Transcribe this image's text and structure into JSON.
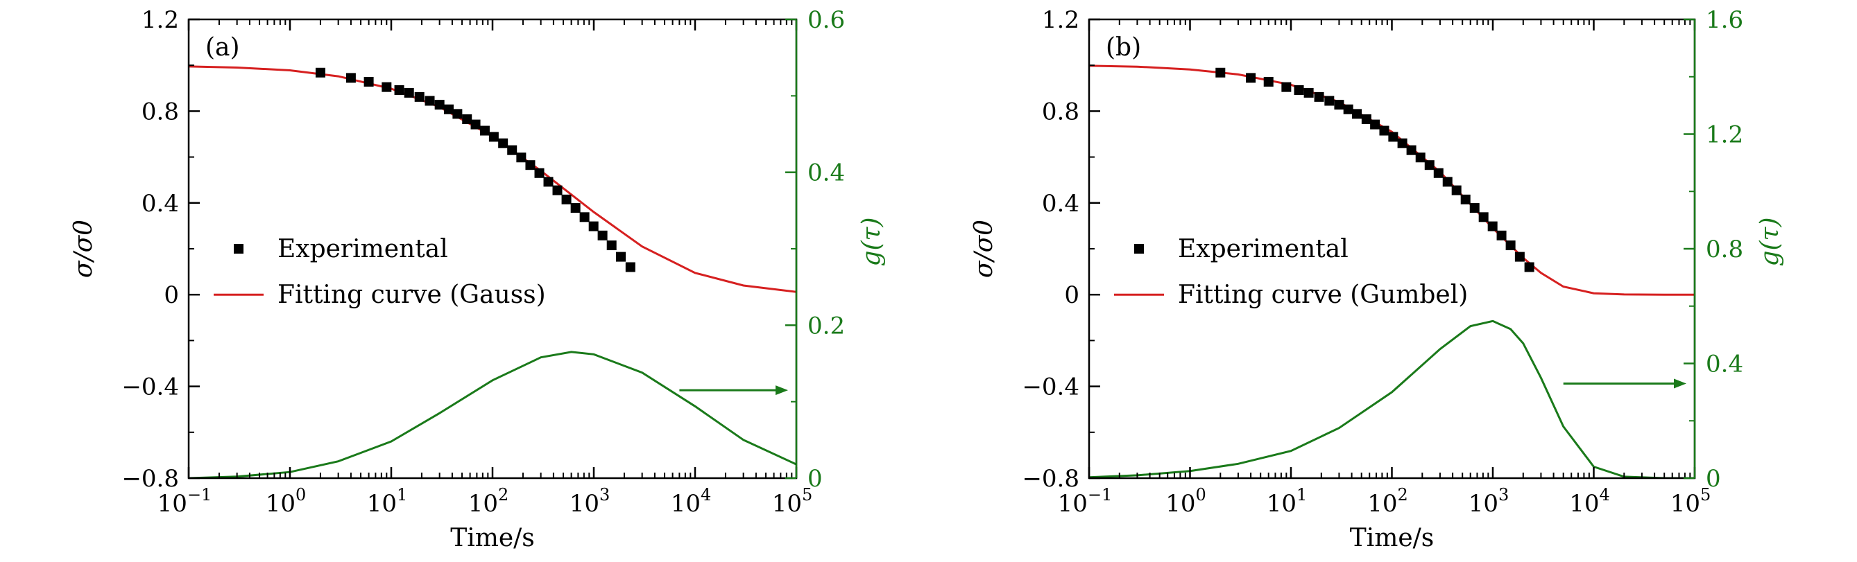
{
  "chart_data": [
    {
      "type": "line",
      "panel_label": "(a)",
      "xlabel": "Time/s",
      "ylabel": "σ/σ0",
      "ylabel_right": "g(τ)",
      "x_scale": "log",
      "xlim": [
        0.1,
        100000
      ],
      "ylim": [
        -0.8,
        1.2
      ],
      "ylim_right": [
        0,
        0.6
      ],
      "x_ticks": [
        0.1,
        1,
        10,
        100,
        1000,
        10000,
        100000
      ],
      "x_tick_labels": [
        {
          "base": "10",
          "exp": "−1"
        },
        {
          "base": "10",
          "exp": "0"
        },
        {
          "base": "10",
          "exp": "1"
        },
        {
          "base": "10",
          "exp": "2"
        },
        {
          "base": "10",
          "exp": "3"
        },
        {
          "base": "10",
          "exp": "4"
        },
        {
          "base": "10",
          "exp": "5"
        }
      ],
      "y_ticks": [
        -0.8,
        -0.4,
        0,
        0.4,
        0.8,
        1.2
      ],
      "y_tick_labels": [
        "−0.8",
        "−0.4",
        "0",
        "0.4",
        "0.8",
        "1.2"
      ],
      "y_right_ticks": [
        0,
        0.2,
        0.4,
        0.6
      ],
      "y_right_tick_labels": [
        "0",
        "0.2",
        "0.4",
        "0.6"
      ],
      "legend": [
        "Experimental",
        "Fitting curve (Gauss)"
      ],
      "legend_position": "middle-left",
      "series": [
        {
          "name": "Experimental",
          "kind": "scatter",
          "color": "#000000",
          "x": [
            2,
            4,
            6,
            9,
            12,
            15,
            19,
            24,
            30,
            37,
            45,
            56,
            68,
            84,
            103,
            127,
            156,
            192,
            236,
            290,
            356,
            437,
            537,
            660,
            810,
            995,
            1220,
            1500,
            1850,
            2300
          ],
          "y": [
            0.968,
            0.945,
            0.928,
            0.905,
            0.892,
            0.88,
            0.862,
            0.845,
            0.828,
            0.808,
            0.788,
            0.765,
            0.742,
            0.715,
            0.688,
            0.66,
            0.63,
            0.598,
            0.565,
            0.53,
            0.492,
            0.455,
            0.415,
            0.378,
            0.338,
            0.298,
            0.258,
            0.215,
            0.165,
            0.12
          ]
        },
        {
          "name": "Fitting curve (Gauss)",
          "kind": "line",
          "color": "#d62020",
          "x": [
            0.1,
            0.3,
            1,
            3,
            10,
            30,
            100,
            300,
            1000,
            3000,
            10000,
            30000,
            100000
          ],
          "y": [
            0.995,
            0.99,
            0.978,
            0.952,
            0.898,
            0.818,
            0.69,
            0.54,
            0.36,
            0.21,
            0.095,
            0.04,
            0.012
          ]
        },
        {
          "name": "g(τ)",
          "kind": "line",
          "axis": "right",
          "color": "#1a7a1a",
          "x": [
            0.1,
            0.3,
            1,
            3,
            10,
            30,
            100,
            300,
            600,
            1000,
            3000,
            10000,
            30000,
            100000
          ],
          "y": [
            0.0,
            0.002,
            0.008,
            0.022,
            0.048,
            0.085,
            0.128,
            0.158,
            0.165,
            0.162,
            0.138,
            0.094,
            0.05,
            0.018
          ]
        }
      ],
      "annotation_arrow": {
        "from_x": 7000,
        "to_x": 100000,
        "y_right": 0.115,
        "points_to": "right-axis"
      }
    },
    {
      "type": "line",
      "panel_label": "(b)",
      "xlabel": "Time/s",
      "ylabel": "σ/σ0",
      "ylabel_right": "g(τ)",
      "x_scale": "log",
      "xlim": [
        0.1,
        100000
      ],
      "ylim": [
        -0.8,
        1.2
      ],
      "ylim_right": [
        0,
        1.6
      ],
      "x_ticks": [
        0.1,
        1,
        10,
        100,
        1000,
        10000,
        100000
      ],
      "x_tick_labels": [
        {
          "base": "10",
          "exp": "−1"
        },
        {
          "base": "10",
          "exp": "0"
        },
        {
          "base": "10",
          "exp": "1"
        },
        {
          "base": "10",
          "exp": "2"
        },
        {
          "base": "10",
          "exp": "3"
        },
        {
          "base": "10",
          "exp": "4"
        },
        {
          "base": "10",
          "exp": "5"
        }
      ],
      "y_ticks": [
        -0.8,
        -0.4,
        0,
        0.4,
        0.8,
        1.2
      ],
      "y_tick_labels": [
        "−0.8",
        "−0.4",
        "0",
        "0.4",
        "0.8",
        "1.2"
      ],
      "y_right_ticks": [
        0,
        0.4,
        0.8,
        1.2,
        1.6
      ],
      "y_right_tick_labels": [
        "0",
        "0.4",
        "0.8",
        "1.2",
        "1.6"
      ],
      "legend": [
        "Experimental",
        "Fitting curve (Gumbel)"
      ],
      "legend_position": "middle-left",
      "series": [
        {
          "name": "Experimental",
          "kind": "scatter",
          "color": "#000000",
          "x": [
            2,
            4,
            6,
            9,
            12,
            15,
            19,
            24,
            30,
            37,
            45,
            56,
            68,
            84,
            103,
            127,
            156,
            192,
            236,
            290,
            356,
            437,
            537,
            660,
            810,
            995,
            1220,
            1500,
            1850,
            2300
          ],
          "y": [
            0.968,
            0.945,
            0.928,
            0.905,
            0.892,
            0.88,
            0.862,
            0.845,
            0.828,
            0.808,
            0.788,
            0.765,
            0.742,
            0.715,
            0.688,
            0.66,
            0.63,
            0.598,
            0.565,
            0.53,
            0.492,
            0.455,
            0.415,
            0.378,
            0.338,
            0.298,
            0.258,
            0.215,
            0.165,
            0.12
          ]
        },
        {
          "name": "Fitting curve (Gumbel)",
          "kind": "line",
          "color": "#d62020",
          "x": [
            0.1,
            0.3,
            1,
            3,
            10,
            30,
            100,
            300,
            1000,
            2000,
            3000,
            5000,
            10000,
            20000,
            50000,
            100000
          ],
          "y": [
            0.998,
            0.994,
            0.982,
            0.96,
            0.915,
            0.84,
            0.71,
            0.535,
            0.29,
            0.16,
            0.095,
            0.035,
            0.006,
            0.001,
            0.0,
            0.0
          ]
        },
        {
          "name": "g(τ)",
          "kind": "line",
          "axis": "right",
          "color": "#1a7a1a",
          "x": [
            0.1,
            0.3,
            1,
            3,
            10,
            30,
            100,
            300,
            600,
            1000,
            1500,
            2000,
            3000,
            5000,
            10000,
            20000,
            50000,
            100000
          ],
          "y": [
            0.003,
            0.01,
            0.025,
            0.05,
            0.095,
            0.175,
            0.3,
            0.45,
            0.53,
            0.548,
            0.52,
            0.47,
            0.35,
            0.18,
            0.04,
            0.005,
            0.0,
            0.0
          ]
        }
      ],
      "annotation_arrow": {
        "from_x": 5000,
        "to_x": 100000,
        "y_right": 0.33,
        "points_to": "right-axis"
      }
    }
  ]
}
